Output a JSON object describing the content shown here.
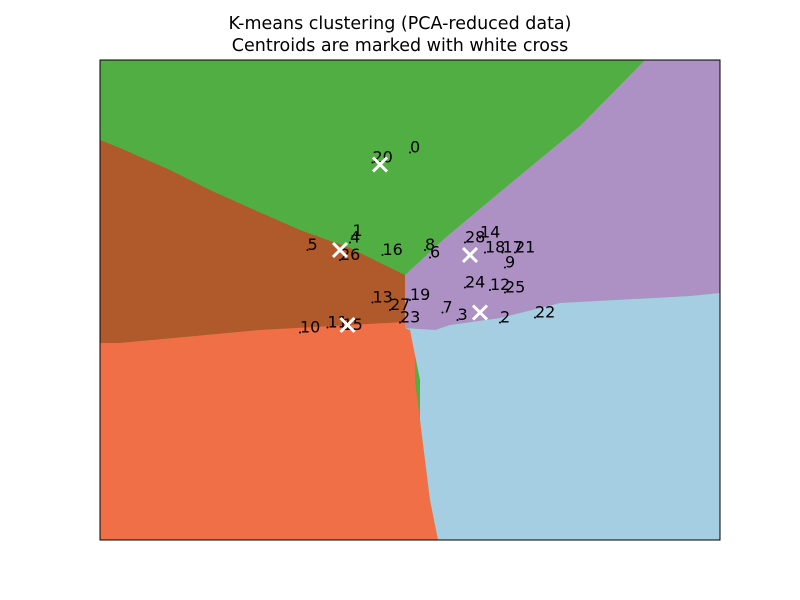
{
  "chart_data": {
    "type": "scatter",
    "title": "K-means clustering (PCA-reduced data)",
    "subtitle": "Centroids are marked with white cross",
    "xlabel": "",
    "ylabel": "",
    "xlim": [
      -6.2,
      6.2
    ],
    "ylim": [
      -4.8,
      4.8
    ],
    "ticks_visible": false,
    "background": "decision regions of 5 clusters",
    "cluster_colors": {
      "green": "#50ae43",
      "brown": "#b05a2b",
      "orange": "#f16f47",
      "purple": "#ae91c4",
      "lightblue": "#a6cee3"
    },
    "centroids": [
      {
        "x": -0.6,
        "y": 2.71
      },
      {
        "x": -1.4,
        "y": 1.0
      },
      {
        "x": -1.25,
        "y": -0.5
      },
      {
        "x": 1.2,
        "y": 0.9
      },
      {
        "x": 1.4,
        "y": -0.25
      }
    ],
    "points": [
      {
        "label": "0",
        "x": -0.0,
        "y": 2.95
      },
      {
        "label": "1",
        "x": -1.15,
        "y": 1.28
      },
      {
        "label": "2",
        "x": 1.8,
        "y": -0.45
      },
      {
        "label": "3",
        "x": 0.95,
        "y": -0.4
      },
      {
        "label": "4",
        "x": -1.2,
        "y": 1.15
      },
      {
        "label": "5",
        "x": -2.05,
        "y": 1.0
      },
      {
        "label": "6",
        "x": 0.4,
        "y": 0.85
      },
      {
        "label": "7",
        "x": 0.65,
        "y": -0.25
      },
      {
        "label": "8",
        "x": 0.3,
        "y": 1.0
      },
      {
        "label": "9",
        "x": 1.9,
        "y": 0.65
      },
      {
        "label": "10",
        "x": -2.2,
        "y": -0.65
      },
      {
        "label": "11",
        "x": -1.65,
        "y": -0.55
      },
      {
        "label": "12",
        "x": 1.6,
        "y": 0.2
      },
      {
        "label": "13",
        "x": -0.75,
        "y": -0.05
      },
      {
        "label": "14",
        "x": 1.4,
        "y": 1.25
      },
      {
        "label": "15",
        "x": -1.35,
        "y": -0.6
      },
      {
        "label": "16",
        "x": -0.55,
        "y": 0.9
      },
      {
        "label": "17",
        "x": 1.85,
        "y": 0.95
      },
      {
        "label": "18",
        "x": 1.5,
        "y": 0.95
      },
      {
        "label": "19",
        "x": -0.0,
        "y": -0.0
      },
      {
        "label": "20",
        "x": -0.75,
        "y": 2.75
      },
      {
        "label": "21",
        "x": 2.1,
        "y": 0.95
      },
      {
        "label": "22",
        "x": 2.5,
        "y": -0.35
      },
      {
        "label": "23",
        "x": -0.2,
        "y": -0.45
      },
      {
        "label": "24",
        "x": 1.1,
        "y": 0.25
      },
      {
        "label": "25",
        "x": 1.9,
        "y": 0.15
      },
      {
        "label": "26",
        "x": -1.4,
        "y": 0.8
      },
      {
        "label": "27",
        "x": -0.4,
        "y": -0.2
      },
      {
        "label": "28",
        "x": 1.1,
        "y": 1.15
      }
    ]
  }
}
